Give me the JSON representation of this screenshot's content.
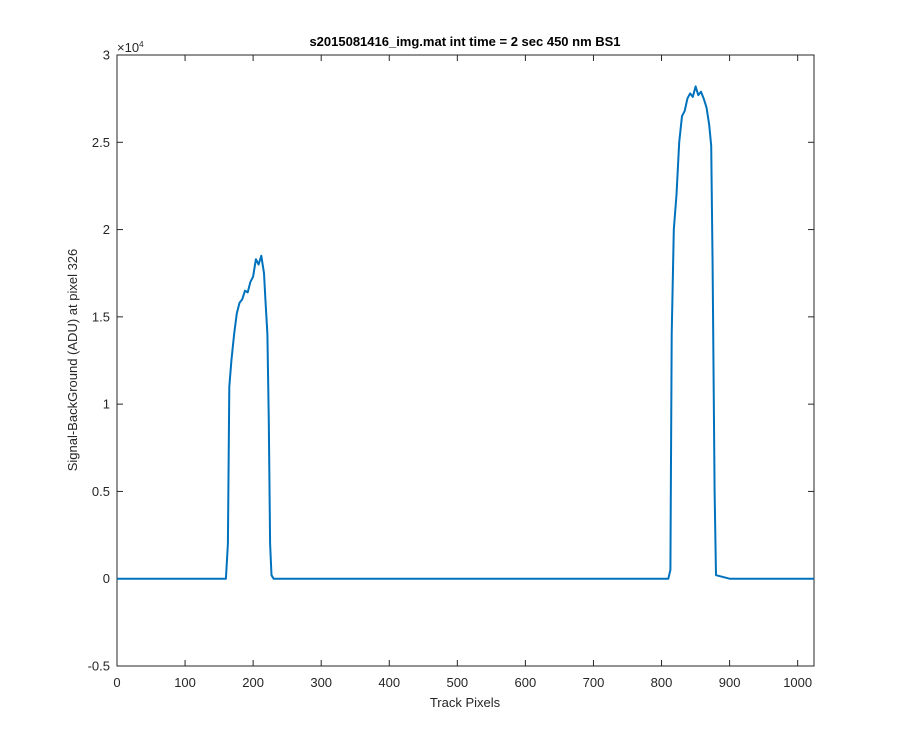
{
  "chart_data": {
    "type": "line",
    "title": "s2015081416_img.mat int time = 2 sec  450 nm BS1",
    "xlabel": "Track Pixels",
    "ylabel": "Signal-BackGround (ADU) at pixel 326",
    "xlim": [
      0,
      1024
    ],
    "ylim": [
      -5000,
      30000
    ],
    "x_ticks": [
      0,
      100,
      200,
      300,
      400,
      500,
      600,
      700,
      800,
      900,
      1000
    ],
    "x_tick_labels": [
      "0",
      "100",
      "200",
      "300",
      "400",
      "500",
      "600",
      "700",
      "800",
      "900",
      "1000"
    ],
    "y_ticks": [
      -5000,
      0,
      5000,
      10000,
      15000,
      20000,
      25000,
      30000
    ],
    "y_tick_labels": [
      "-0.5",
      "0",
      "0.5",
      "1",
      "1.5",
      "2",
      "2.5",
      "3"
    ],
    "y_exponent_label": "×10",
    "y_exponent_power": "4",
    "grid": false,
    "line_color": "#0072BD",
    "series": [
      {
        "x": [
          0,
          100,
          160,
          163,
          165,
          168,
          172,
          176,
          180,
          184,
          188,
          192,
          196,
          200,
          204,
          208,
          212,
          216,
          218,
          221,
          223,
          225,
          227,
          230,
          300,
          400,
          500,
          600,
          700,
          800,
          810,
          813,
          815,
          818,
          822,
          826,
          830,
          834,
          838,
          842,
          846,
          850,
          854,
          858,
          862,
          866,
          870,
          873,
          875,
          878,
          880,
          900,
          1000,
          1024
        ],
        "y": [
          0,
          0,
          0,
          2000,
          11000,
          12500,
          14000,
          15200,
          15800,
          16000,
          16500,
          16400,
          17000,
          17300,
          18300,
          18000,
          18500,
          17500,
          16000,
          14000,
          9000,
          2000,
          200,
          0,
          0,
          0,
          0,
          0,
          0,
          0,
          0,
          500,
          14000,
          20000,
          22000,
          25000,
          26500,
          26800,
          27500,
          27800,
          27600,
          28200,
          27700,
          27900,
          27500,
          27000,
          26000,
          24800,
          18000,
          5000,
          200,
          0,
          0,
          0
        ]
      }
    ]
  }
}
